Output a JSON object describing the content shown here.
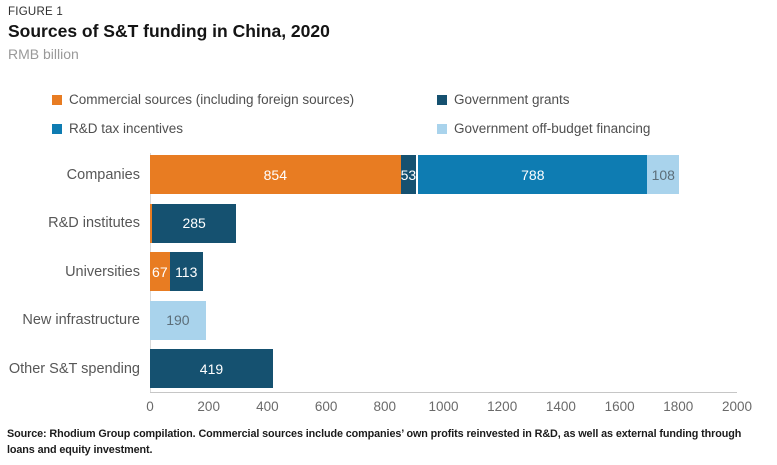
{
  "header": {
    "eyebrow": "FIGURE 1",
    "title": "Sources of S&T funding in China, 2020",
    "subtitle": "RMB billion"
  },
  "palette": {
    "orange": "#E87C22",
    "navy": "#155170",
    "blue": "#0E7CB2",
    "lightblue": "#A9D3EC",
    "axis_line": "#C6C6C6",
    "y_axis_line": "#D9D9D9",
    "value_label_on_light": "#5C6E79",
    "value_label_on_dark": "#FFFFFF"
  },
  "legend": {
    "items": [
      {
        "label": "Commercial sources (including foreign sources)",
        "color": "orange"
      },
      {
        "label": "Government grants",
        "color": "navy"
      },
      {
        "label": "R&D tax incentives",
        "color": "blue"
      },
      {
        "label": "Government off-budget financing",
        "color": "lightblue"
      }
    ]
  },
  "chart_data": {
    "type": "bar",
    "orientation": "horizontal",
    "stacked": true,
    "title": "Sources of S&T funding in China, 2020",
    "unit": "RMB billion",
    "categories": [
      "Companies",
      "R&D institutes",
      "Universities",
      "New infrastructure",
      "Other S&T spending"
    ],
    "series": [
      {
        "name": "Commercial sources (including foreign sources)",
        "color": "orange",
        "values": [
          854,
          8,
          67,
          0,
          0
        ],
        "value_labels": [
          "854",
          "",
          "67",
          "",
          ""
        ]
      },
      {
        "name": "Government grants",
        "color": "navy",
        "values": [
          53,
          285,
          113,
          0,
          419
        ],
        "value_labels": [
          "53",
          "285",
          "113",
          "",
          "419"
        ]
      },
      {
        "name": "R&D tax incentives",
        "color": "blue",
        "values": [
          788,
          0,
          0,
          0,
          0
        ],
        "value_labels": [
          "788",
          "",
          "",
          "",
          ""
        ]
      },
      {
        "name": "Government off-budget financing",
        "color": "lightblue",
        "values": [
          108,
          0,
          0,
          190,
          0
        ],
        "value_labels": [
          "108",
          "",
          "",
          "190",
          ""
        ]
      }
    ],
    "xlim": [
      0,
      2000
    ],
    "xticks": [
      0,
      200,
      400,
      600,
      800,
      1000,
      1200,
      1400,
      1600,
      1800,
      2000
    ],
    "grid": false,
    "legend_position": "top"
  },
  "footer": {
    "lines": [
      "Source: Rhodium Group compilation. Commercial sources include companies’ own profits reinvested in R&D, as well as external funding through",
      "loans and equity investment."
    ]
  }
}
